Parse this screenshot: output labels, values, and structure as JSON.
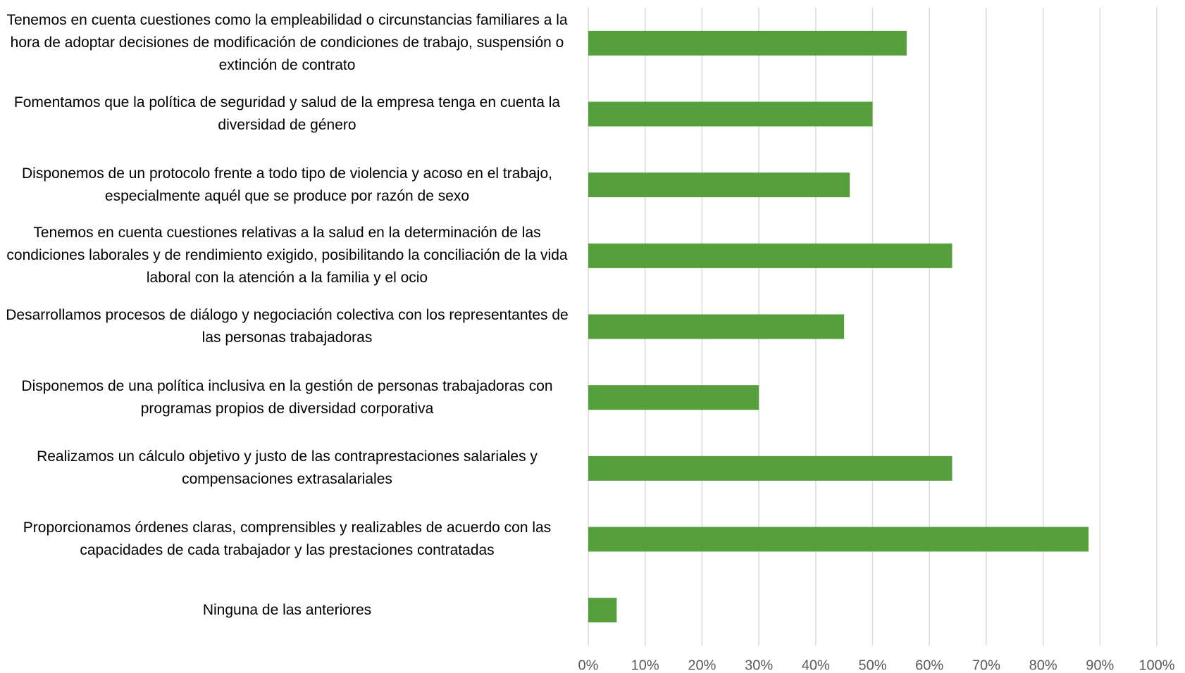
{
  "chart_data": {
    "type": "bar",
    "orientation": "horizontal",
    "categories": [
      "Tenemos en cuenta cuestiones como la empleabilidad o circunstancias familiares a la hora de adoptar decisiones de modificación de condiciones de trabajo, suspensión o extinción de contrato",
      "Fomentamos que la política de seguridad y salud de la empresa tenga en cuenta la diversidad de género",
      "Disponemos de un protocolo frente a todo tipo de violencia y acoso en el trabajo, especialmente aquél que se produce por razón de sexo",
      "Tenemos en cuenta cuestiones relativas a la salud en la determinación de las condiciones laborales y de rendimiento exigido, posibilitando la conciliación de la vida laboral con la atención a la familia y el ocio",
      "Desarrollamos procesos de diálogo y negociación colectiva con los representantes de las personas trabajadoras",
      "Disponemos de una política inclusiva en la gestión de personas trabajadoras con programas propios de diversidad corporativa",
      "Realizamos un cálculo objetivo y justo de las contraprestaciones salariales y compensaciones extrasalariales",
      "Proporcionamos órdenes claras, comprensibles y realizables de acuerdo con las capacidades de cada trabajador y las prestaciones contratadas",
      "Ninguna de las anteriores"
    ],
    "values": [
      56,
      50,
      46,
      64,
      45,
      30,
      64,
      88,
      5
    ],
    "color": "#55a03b",
    "xlim": [
      0,
      100
    ],
    "xticks": [
      {
        "value": 0,
        "label": "0%"
      },
      {
        "value": 10,
        "label": "10%"
      },
      {
        "value": 20,
        "label": "20%"
      },
      {
        "value": 30,
        "label": "30%"
      },
      {
        "value": 40,
        "label": "40%"
      },
      {
        "value": 50,
        "label": "50%"
      },
      {
        "value": 60,
        "label": "60%"
      },
      {
        "value": 70,
        "label": "70%"
      },
      {
        "value": 80,
        "label": "80%"
      },
      {
        "value": 90,
        "label": "90%"
      },
      {
        "value": 100,
        "label": "100%"
      }
    ],
    "grid": true
  }
}
